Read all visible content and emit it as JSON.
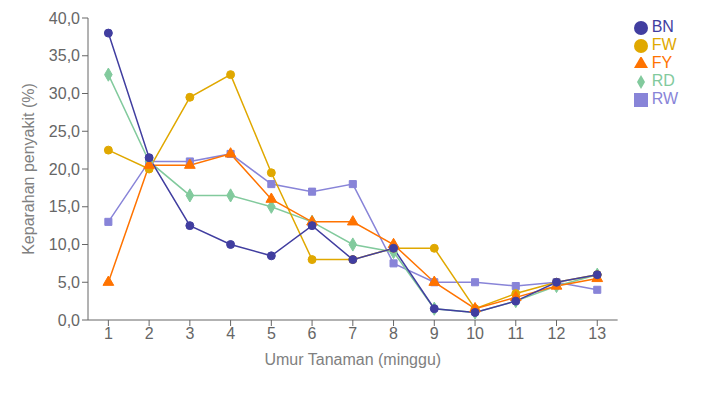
{
  "chart_data": {
    "type": "line",
    "xlabel": "Umur Tanaman (minggu)",
    "ylabel": "Keparahan penyakit (%)",
    "x": [
      1,
      2,
      3,
      4,
      5,
      6,
      7,
      8,
      9,
      10,
      11,
      12,
      13
    ],
    "xlim": [
      0.5,
      13.5
    ],
    "xticks": [
      1,
      2,
      3,
      4,
      5,
      6,
      7,
      8,
      9,
      10,
      11,
      12,
      13
    ],
    "ylim": [
      0,
      40
    ],
    "yticks": [
      {
        "value": 0.0,
        "label": "0,0"
      },
      {
        "value": 5.0,
        "label": "5,0"
      },
      {
        "value": 10.0,
        "label": "10,0"
      },
      {
        "value": 15.0,
        "label": "15,0"
      },
      {
        "value": 20.0,
        "label": "20,0"
      },
      {
        "value": 25.0,
        "label": "25,0"
      },
      {
        "value": 30.0,
        "label": "30,0"
      },
      {
        "value": 35.0,
        "label": "35,0"
      },
      {
        "value": 40.0,
        "label": "40,0"
      }
    ],
    "grid": false,
    "legend": "right",
    "series": [
      {
        "name": "RW",
        "color": "#8884d8",
        "marker": "square",
        "values": [
          13.0,
          21.0,
          21.0,
          22.0,
          18.0,
          17.0,
          18.0,
          7.5,
          5.0,
          5.0,
          4.5,
          5.0,
          4.0
        ]
      },
      {
        "name": "RD",
        "color": "#82ca9d",
        "marker": "diamond",
        "values": [
          32.5,
          21.0,
          16.5,
          16.5,
          15.0,
          13.0,
          10.0,
          9.0,
          1.5,
          1.0,
          2.5,
          4.5,
          6.0
        ]
      },
      {
        "name": "FW",
        "color": "#e0a800",
        "marker": "circle",
        "values": [
          22.5,
          20.0,
          29.5,
          32.5,
          19.5,
          8.0,
          8.0,
          9.5,
          9.5,
          1.5,
          3.5,
          5.0,
          6.0
        ]
      },
      {
        "name": "FY",
        "color": "#ff7300",
        "marker": "triangle",
        "values": [
          5.0,
          20.5,
          20.5,
          22.0,
          16.0,
          13.0,
          13.0,
          10.0,
          5.0,
          1.5,
          3.0,
          4.5,
          5.5
        ]
      },
      {
        "name": "BN",
        "color": "#413ea0",
        "marker": "circle",
        "values": [
          38.0,
          21.5,
          12.5,
          10.0,
          8.5,
          12.5,
          8.0,
          9.5,
          1.5,
          1.0,
          2.5,
          5.0,
          6.0
        ]
      }
    ]
  }
}
